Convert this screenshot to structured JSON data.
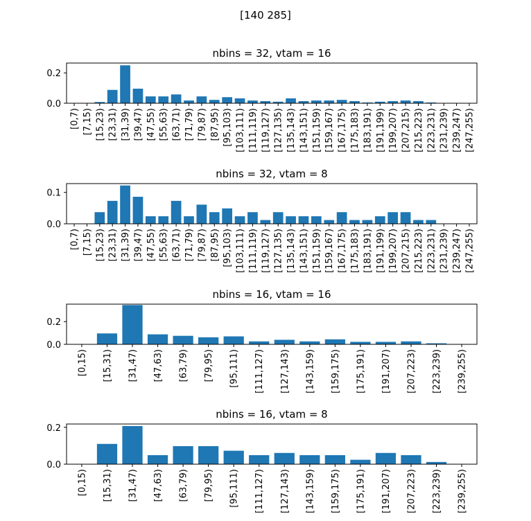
{
  "figure": {
    "suptitle": "[140 285]"
  },
  "chart_data": [
    {
      "type": "bar",
      "title": "nbins = 32, vtam = 16",
      "xlabel": "",
      "ylabel": "",
      "color": "#1f77b4",
      "ylim": [
        0,
        0.265
      ],
      "yticks": [
        0.0,
        0.2
      ],
      "ytick_labels": [
        "0.0",
        "0.2"
      ],
      "categories": [
        "[0,7)",
        "[7,15)",
        "[15,23)",
        "[23,31)",
        "[31,39)",
        "[39,47)",
        "[47,55)",
        "[55,63)",
        "[63,71)",
        "[71,79)",
        "[79,87)",
        "[87,95)",
        "[95,103)",
        "[103,111)",
        "[111,119)",
        "[119,127)",
        "[127,135)",
        "[135,143)",
        "[143,151)",
        "[151,159)",
        "[159,167)",
        "[167,175)",
        "[175,183)",
        "[183,191)",
        "[191,199)",
        "[199,207)",
        "[207,215)",
        "[215,223)",
        "[223,231)",
        "[231,239)",
        "[239,247)",
        "[247,255)"
      ],
      "values": [
        0,
        0,
        0.008,
        0.088,
        0.25,
        0.096,
        0.045,
        0.045,
        0.058,
        0.018,
        0.045,
        0.022,
        0.04,
        0.032,
        0.018,
        0.014,
        0.01,
        0.032,
        0.014,
        0.018,
        0.018,
        0.022,
        0.014,
        0.005,
        0.01,
        0.014,
        0.018,
        0.014,
        0.005,
        0,
        0,
        0
      ]
    },
    {
      "type": "bar",
      "title": "nbins = 32, vtam = 8",
      "xlabel": "",
      "ylabel": "",
      "color": "#1f77b4",
      "ylim": [
        0,
        0.128
      ],
      "yticks": [
        0.0,
        0.1
      ],
      "ytick_labels": [
        "0.0",
        "0.1"
      ],
      "categories": [
        "[0,7)",
        "[7,15)",
        "[15,23)",
        "[23,31)",
        "[31,39)",
        "[39,47)",
        "[47,55)",
        "[55,63)",
        "[63,71)",
        "[71,79)",
        "[79,87)",
        "[87,95)",
        "[95,103)",
        "[103,111)",
        "[111,119)",
        "[119,127)",
        "[127,135)",
        "[135,143)",
        "[143,151)",
        "[151,159)",
        "[159,167)",
        "[167,175)",
        "[175,183)",
        "[183,191)",
        "[191,199)",
        "[199,207)",
        "[207,215)",
        "[215,223)",
        "[223,231)",
        "[231,239)",
        "[239,247)",
        "[247,255)"
      ],
      "values": [
        0,
        0,
        0.037,
        0.073,
        0.122,
        0.086,
        0.024,
        0.024,
        0.073,
        0.024,
        0.061,
        0.037,
        0.049,
        0.024,
        0.037,
        0.012,
        0.037,
        0.024,
        0.024,
        0.024,
        0.012,
        0.037,
        0.012,
        0.012,
        0.024,
        0.037,
        0.037,
        0.012,
        0.012,
        0,
        0,
        0
      ]
    },
    {
      "type": "bar",
      "title": "nbins = 16, vtam = 16",
      "xlabel": "",
      "ylabel": "",
      "color": "#1f77b4",
      "ylim": [
        0,
        0.354
      ],
      "yticks": [
        0.0,
        0.2
      ],
      "ytick_labels": [
        "0.0",
        "0.2"
      ],
      "categories": [
        "[0,15)",
        "[15,31)",
        "[31,47)",
        "[47,63)",
        "[63,79)",
        "[79,95)",
        "[95,111)",
        "[111,127)",
        "[127,143)",
        "[143,159)",
        "[159,175)",
        "[175,191)",
        "[191,207)",
        "[207,223)",
        "[223,239)",
        "[239,255)"
      ],
      "values": [
        0,
        0.096,
        0.346,
        0.088,
        0.075,
        0.062,
        0.07,
        0.026,
        0.04,
        0.026,
        0.044,
        0.022,
        0.022,
        0.026,
        0.009,
        0
      ]
    },
    {
      "type": "bar",
      "title": "nbins = 16, vtam = 8",
      "xlabel": "",
      "ylabel": "",
      "color": "#1f77b4",
      "ylim": [
        0,
        0.218
      ],
      "yticks": [
        0.0,
        0.2
      ],
      "ytick_labels": [
        "0.0",
        "0.2"
      ],
      "categories": [
        "[0,15)",
        "[15,31)",
        "[31,47)",
        "[47,63)",
        "[63,79)",
        "[79,95)",
        "[95,111)",
        "[111,127)",
        "[127,143)",
        "[143,159)",
        "[159,175)",
        "[175,191)",
        "[191,207)",
        "[207,223)",
        "[223,239)",
        "[239,255)"
      ],
      "values": [
        0,
        0.11,
        0.207,
        0.049,
        0.098,
        0.098,
        0.073,
        0.049,
        0.061,
        0.049,
        0.049,
        0.024,
        0.061,
        0.049,
        0.012,
        0
      ]
    }
  ]
}
